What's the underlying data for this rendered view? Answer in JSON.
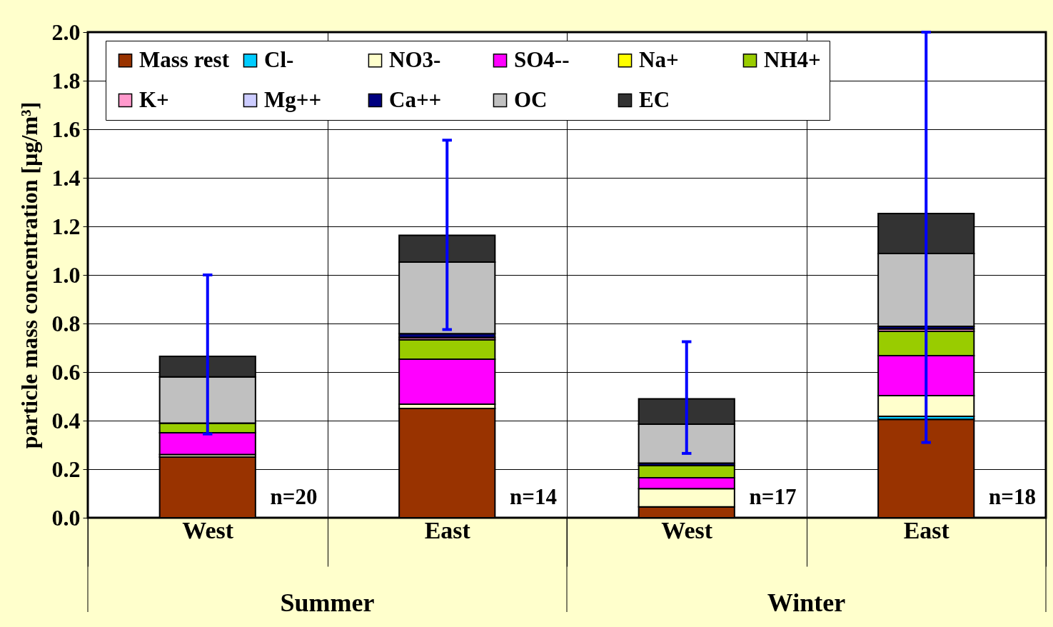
{
  "chart_data": {
    "type": "bar",
    "stacked": true,
    "ylabel": "particle mass concentration [µg/m³]",
    "categories": [
      "West",
      "East",
      "West",
      "East"
    ],
    "ylim": [
      0,
      2.0
    ],
    "yticks": [
      {
        "value": 0,
        "label": "0.0"
      },
      {
        "value": 0.2,
        "label": "0.2"
      },
      {
        "value": 0.4,
        "label": "0.4"
      },
      {
        "value": 0.6,
        "label": "0.6"
      },
      {
        "value": 0.8,
        "label": "0.8"
      },
      {
        "value": 1.0,
        "label": "1.0"
      },
      {
        "value": 1.2,
        "label": "1.2"
      },
      {
        "value": 1.4,
        "label": "1.4"
      },
      {
        "value": 1.6,
        "label": "1.6"
      },
      {
        "value": 1.8,
        "label": "1.8"
      },
      {
        "value": 2.0,
        "label": "2.0"
      }
    ],
    "grid": true,
    "legend": "top left",
    "series": [
      {
        "name": "Mass rest",
        "color": "#993300",
        "values": [
          0.25,
          0.45,
          0.045,
          0.405
        ]
      },
      {
        "name": "Cl-",
        "color": "#00ccff",
        "values": [
          0,
          0,
          0,
          0.013
        ]
      },
      {
        "name": "NO3-",
        "color": "#ffffcc",
        "values": [
          0.01,
          0.018,
          0.075,
          0.085
        ]
      },
      {
        "name": "SO4--",
        "color": "#ff00ff",
        "values": [
          0.09,
          0.185,
          0.045,
          0.165
        ]
      },
      {
        "name": "Na+",
        "color": "#ffff00",
        "values": [
          0,
          0,
          0,
          null
        ]
      },
      {
        "name": "NH4+",
        "color": "#99cc00",
        "values": [
          0.04,
          0.08,
          0.05,
          0.1
        ]
      },
      {
        "name": "K+",
        "color": "#ff99cc",
        "values": [
          null,
          0.01,
          null,
          0.01
        ]
      },
      {
        "name": "Mg++",
        "color": "#ccccff",
        "values": [
          0,
          0,
          0,
          0
        ]
      },
      {
        "name": "Ca++",
        "color": "#000080",
        "values": [
          null,
          0.015,
          0.01,
          0.01
        ]
      },
      {
        "name": "OC",
        "color": "#c0c0c0",
        "values": [
          0.19,
          0.295,
          0.16,
          0.3
        ]
      },
      {
        "name": "EC",
        "color": "#333333",
        "values": [
          0.085,
          0.11,
          0.105,
          0.165
        ],
        "errors": [
          [
            0.345,
            1.0
          ],
          [
            0.775,
            1.555
          ],
          [
            0.265,
            0.725
          ],
          [
            0.31,
            2.0
          ]
        ]
      }
    ],
    "annotations": [
      "n=20",
      "n=14",
      "n=17",
      "n=18",
      "Summer",
      "Winter"
    ]
  }
}
